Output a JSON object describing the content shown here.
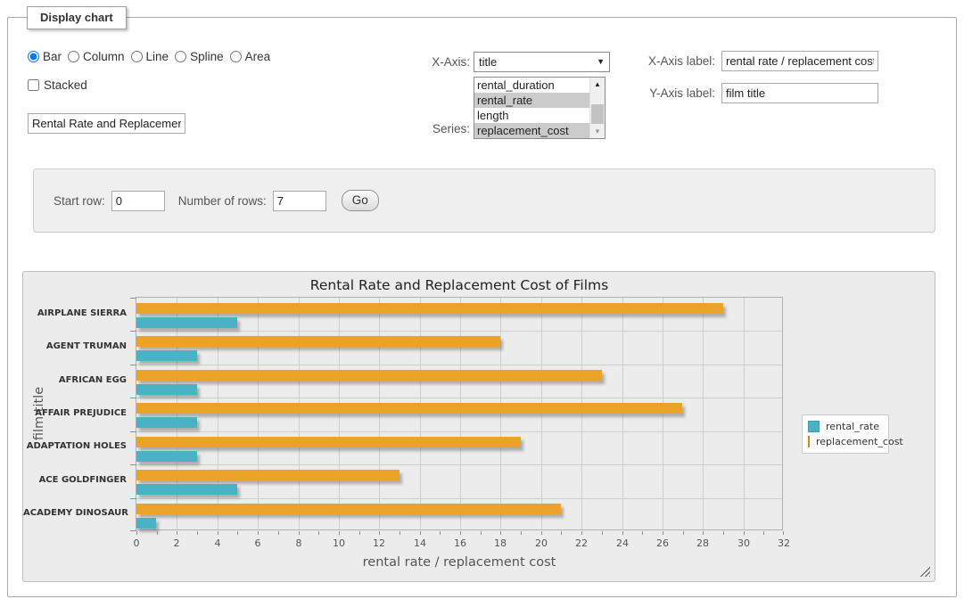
{
  "form": {
    "legend_title": "Display chart",
    "chart_types": [
      {
        "label": "Bar",
        "selected": true
      },
      {
        "label": "Column",
        "selected": false
      },
      {
        "label": "Line",
        "selected": false
      },
      {
        "label": "Spline",
        "selected": false
      },
      {
        "label": "Area",
        "selected": false
      }
    ],
    "stacked_label": "Stacked",
    "stacked_checked": false,
    "title_input_value": "Rental Rate and Replacement Cost of Films",
    "x_axis_label_text": "X-Axis:",
    "x_axis_selected": "title",
    "series_label_text": "Series:",
    "series_options": [
      {
        "label": "rental_duration",
        "selected": false
      },
      {
        "label": "rental_rate",
        "selected": true
      },
      {
        "label": "length",
        "selected": false
      },
      {
        "label": "replacement_cost",
        "selected": true
      }
    ],
    "x_axis_field_label": "X-Axis label:",
    "x_axis_field_value": "rental rate / replacement cost",
    "y_axis_field_label": "Y-Axis label:",
    "y_axis_field_value": "film title"
  },
  "row_controls": {
    "start_row_label": "Start row:",
    "start_row_value": "0",
    "num_rows_label": "Number of rows:",
    "num_rows_value": "7",
    "go_label": "Go"
  },
  "chart_data": {
    "type": "bar",
    "orientation": "horizontal",
    "title": "Rental Rate and Replacement Cost of Films",
    "xlabel": "rental rate / replacement cost",
    "ylabel": "film title",
    "categories": [
      "AIRPLANE SIERRA",
      "AGENT TRUMAN",
      "AFRICAN EGG",
      "AFFAIR PREJUDICE",
      "ADAPTATION HOLES",
      "ACE GOLDFINGER",
      "ACADEMY DINOSAUR"
    ],
    "series": [
      {
        "name": "rental_rate",
        "color": "#4bb2c5",
        "values": [
          4.99,
          2.99,
          2.99,
          2.99,
          2.99,
          4.99,
          0.99
        ]
      },
      {
        "name": "replacement_cost",
        "color": "#eaa228",
        "values": [
          28.99,
          17.99,
          22.99,
          26.99,
          18.99,
          12.99,
          20.99
        ]
      }
    ],
    "bar_order_top_to_bottom": [
      "replacement_cost",
      "rental_rate"
    ],
    "xlim": [
      0,
      32
    ],
    "x_tick_step": 2,
    "x_minor_tick_step": 1,
    "grid": true,
    "legend_position": "right"
  }
}
